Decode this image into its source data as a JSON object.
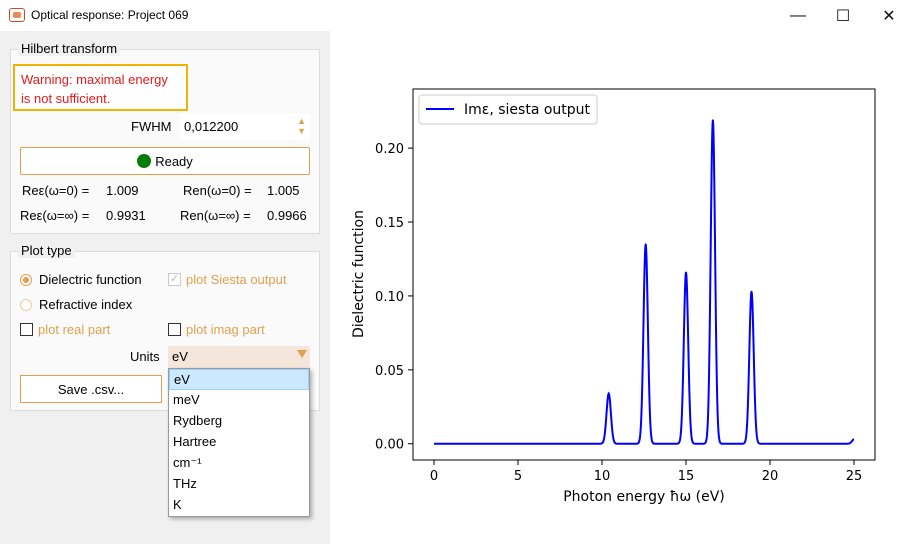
{
  "window": {
    "title": "Optical response: Project 069",
    "minimize": "—",
    "maximize": "☐",
    "close": "✕"
  },
  "hilbert": {
    "group_title": "Hilbert transform",
    "warning_line1": "Warning: maximal energy",
    "warning_line2": "is not sufficient.",
    "fwhm_label": "FWHM",
    "fwhm_value": "0,012200",
    "ready_label": "Ready",
    "re_eps_0_label": "Reε(ω=0) =",
    "re_eps_0_value": "1.009",
    "re_n_0_label": "Ren(ω=0) =",
    "re_n_0_value": "1.005",
    "re_eps_inf_label": "Reε(ω=∞) =",
    "re_eps_inf_value": "0.9931",
    "re_n_inf_label": "Ren(ω=∞) =",
    "re_n_inf_value": "0.9966"
  },
  "plot_type": {
    "group_title": "Plot type",
    "dielectric_label": "Dielectric function",
    "refractive_label": "Refractive index",
    "siesta_label": "plot Siesta output",
    "real_label": "plot real part",
    "imag_label": "plot imag part",
    "units_label": "Units",
    "units_value": "eV",
    "save_label": "Save .csv..."
  },
  "units_options": [
    "eV",
    "meV",
    "Rydberg",
    "Hartree",
    "cm⁻¹",
    "THz",
    "K"
  ],
  "chart_data": {
    "type": "line",
    "xlabel": "Photon energy ħω (eV)",
    "ylabel": "Dielectric function",
    "xlim": [
      -1.25,
      26.25
    ],
    "ylim": [
      -0.011,
      0.24
    ],
    "xticks": [
      "0",
      "5",
      "10",
      "15",
      "20",
      "25"
    ],
    "yticks": [
      "0.00",
      "0.05",
      "0.10",
      "0.15",
      "0.20"
    ],
    "legend_position": "top-left",
    "series": [
      {
        "name": "Imε, siesta output",
        "color": "#0000ff",
        "peaks": [
          {
            "x": 10.4,
            "y": 0.034
          },
          {
            "x": 12.6,
            "y": 0.135
          },
          {
            "x": 15.0,
            "y": 0.116
          },
          {
            "x": 16.6,
            "y": 0.219
          },
          {
            "x": 18.9,
            "y": 0.103
          }
        ],
        "end_value": {
          "x": 25.0,
          "y": 0.003
        }
      }
    ]
  }
}
